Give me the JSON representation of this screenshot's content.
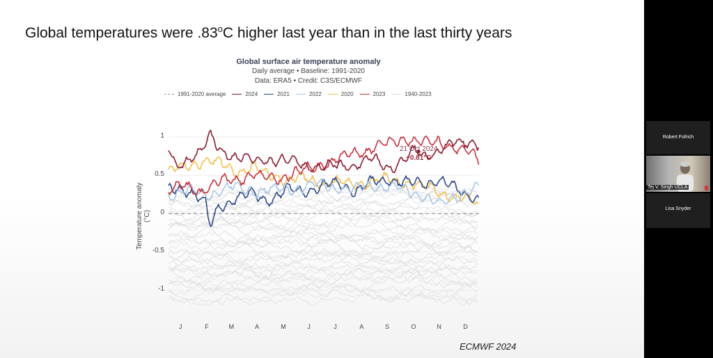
{
  "slide": {
    "title_main": "Global temperatures were .83",
    "title_sup": "o",
    "title_end": "C higher last year than in the last thirty years",
    "credit": "ECMWF 2024"
  },
  "chart_data": {
    "type": "line",
    "title": "Global surface air temperature anomaly",
    "subtitle_1": "Daily average • Baseline: 1991-2020",
    "subtitle_2": "Data: ERA5 • Credit: C3S/ECMWF",
    "ylabel": "Temperature anomaly (°C)",
    "ylim": [
      -1.25,
      1.2
    ],
    "yticks": [
      {
        "value": 1,
        "label": "1"
      },
      {
        "value": 0.5,
        "label": "0.5"
      },
      {
        "value": 0,
        "label": "0"
      },
      {
        "value": -0.5,
        "label": "-0.5"
      },
      {
        "value": -1,
        "label": "-1"
      }
    ],
    "xlim": [
      1,
      366
    ],
    "xticks": [
      {
        "day": 15,
        "label": "J"
      },
      {
        "day": 46,
        "label": "F"
      },
      {
        "day": 75,
        "label": "M"
      },
      {
        "day": 105,
        "label": "A"
      },
      {
        "day": 136,
        "label": "M"
      },
      {
        "day": 166,
        "label": "J"
      },
      {
        "day": 197,
        "label": "J"
      },
      {
        "day": 228,
        "label": "A"
      },
      {
        "day": 258,
        "label": "S"
      },
      {
        "day": 289,
        "label": "O"
      },
      {
        "day": 319,
        "label": "N"
      },
      {
        "day": 350,
        "label": "D"
      }
    ],
    "legend": [
      {
        "label": "1991-2020 average",
        "color": "#999999",
        "dash": true
      },
      {
        "label": "2024",
        "color": "#8b1a2e"
      },
      {
        "label": "2021",
        "color": "#2b4a8a"
      },
      {
        "label": "2022",
        "color": "#a8c6e6"
      },
      {
        "label": "2020",
        "color": "#f2c14e"
      },
      {
        "label": "2023",
        "color": "#c9303c"
      },
      {
        "label": "1940-2023",
        "color": "#dddddd"
      }
    ],
    "baseline": {
      "name": "1991-2020 average",
      "value": 0
    },
    "historical_band": {
      "name": "1940-2023",
      "min": -1.2,
      "max": 0.6,
      "color": "#dddddd"
    },
    "series": [
      {
        "name": "2020",
        "color": "#f2c14e",
        "days": [
          1,
          20,
          40,
          60,
          80,
          100,
          120,
          140,
          160,
          180,
          200,
          220,
          240,
          260,
          280,
          300,
          320,
          340,
          360,
          366
        ],
        "values": [
          0.55,
          0.6,
          0.7,
          0.65,
          0.55,
          0.6,
          0.5,
          0.45,
          0.45,
          0.42,
          0.4,
          0.38,
          0.42,
          0.45,
          0.42,
          0.35,
          0.3,
          0.2,
          0.15,
          0.12
        ]
      },
      {
        "name": "2021",
        "color": "#2b4a8a",
        "days": [
          1,
          15,
          30,
          45,
          50,
          60,
          80,
          100,
          120,
          140,
          160,
          180,
          200,
          220,
          240,
          260,
          280,
          300,
          320,
          340,
          360,
          366
        ],
        "values": [
          0.3,
          0.35,
          0.28,
          0.1,
          -0.18,
          0.1,
          0.2,
          0.25,
          0.18,
          0.3,
          0.3,
          0.35,
          0.4,
          0.3,
          0.4,
          0.45,
          0.4,
          0.38,
          0.45,
          0.3,
          0.22,
          0.2
        ]
      },
      {
        "name": "2022",
        "color": "#a8c6e6",
        "days": [
          1,
          20,
          40,
          60,
          80,
          100,
          120,
          140,
          160,
          180,
          200,
          220,
          240,
          260,
          280,
          300,
          320,
          340,
          360,
          366
        ],
        "values": [
          0.25,
          0.3,
          0.25,
          0.3,
          0.35,
          0.3,
          0.3,
          0.32,
          0.35,
          0.38,
          0.35,
          0.3,
          0.38,
          0.35,
          0.3,
          0.25,
          0.1,
          0.25,
          0.32,
          0.35
        ]
      },
      {
        "name": "2023",
        "color": "#c9303c",
        "days": [
          1,
          20,
          40,
          60,
          80,
          100,
          120,
          140,
          160,
          180,
          200,
          220,
          240,
          260,
          280,
          300,
          320,
          340,
          360,
          366
        ],
        "values": [
          0.3,
          0.35,
          0.3,
          0.4,
          0.45,
          0.5,
          0.45,
          0.5,
          0.55,
          0.65,
          0.7,
          0.8,
          0.85,
          0.9,
          1.0,
          0.9,
          0.95,
          0.85,
          0.75,
          0.7
        ]
      },
      {
        "name": "2024",
        "color": "#8b1a2e",
        "days": [
          1,
          10,
          20,
          30,
          40,
          50,
          60,
          70,
          80,
          90,
          100,
          120,
          140,
          160,
          180,
          200,
          220,
          240,
          260,
          280,
          290,
          300,
          320,
          340,
          360,
          366
        ],
        "values": [
          0.85,
          0.6,
          0.7,
          0.75,
          0.8,
          1.0,
          0.85,
          0.8,
          0.75,
          0.7,
          0.68,
          0.72,
          0.68,
          0.65,
          0.6,
          0.62,
          0.65,
          0.7,
          0.6,
          0.72,
          0.81,
          0.75,
          0.85,
          0.9,
          0.95,
          0.92
        ]
      }
    ],
    "annotation": {
      "date": "21 Oct 2024",
      "value_label": "+0.81°C",
      "day": 295,
      "value": 0.81
    }
  },
  "participants": [
    {
      "name": "Robert Fofrich",
      "video": false
    },
    {
      "name": "Tej V. Singh UCLA",
      "video": true
    },
    {
      "name": "Lisa Snyder",
      "video": false
    }
  ]
}
